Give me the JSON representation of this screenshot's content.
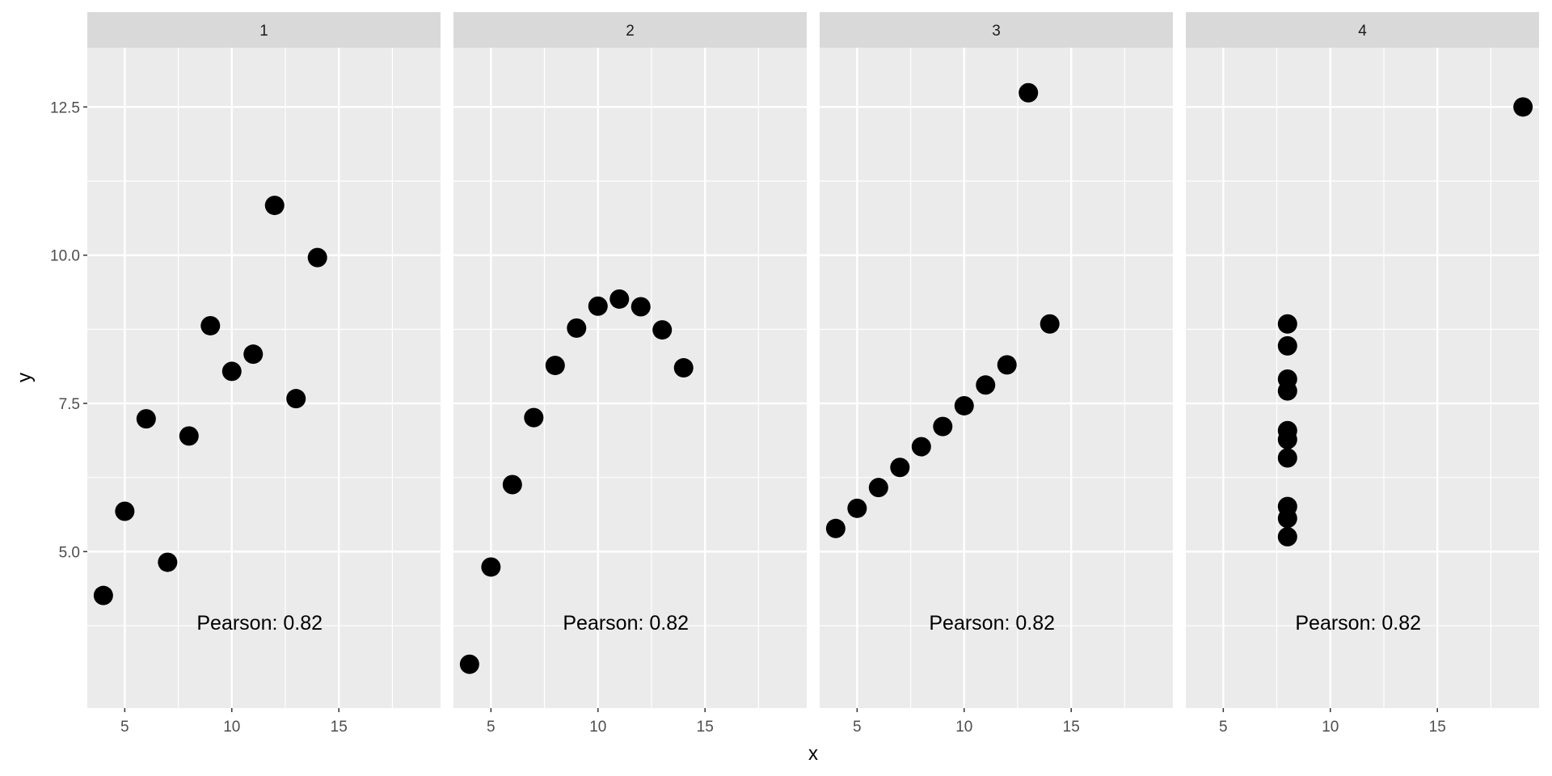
{
  "chart_data": {
    "type": "scatter",
    "xlabel": "x",
    "ylabel": "y",
    "xlim": [
      3.25,
      19.75
    ],
    "ylim": [
      2.36,
      13.5
    ],
    "x_ticks": [
      5,
      10,
      15
    ],
    "x_tick_labels": [
      "5",
      "10",
      "15"
    ],
    "y_ticks": [
      5.0,
      7.5,
      10.0,
      12.5
    ],
    "y_tick_labels": [
      "5.0",
      "7.5",
      "10.0",
      "12.5"
    ],
    "grid": true,
    "facets": [
      {
        "label": "1",
        "annotation": "Pearson:  0.82",
        "points": [
          [
            10,
            8.04
          ],
          [
            8,
            6.95
          ],
          [
            13,
            7.58
          ],
          [
            9,
            8.81
          ],
          [
            11,
            8.33
          ],
          [
            14,
            9.96
          ],
          [
            6,
            7.24
          ],
          [
            4,
            4.26
          ],
          [
            12,
            10.84
          ],
          [
            7,
            4.82
          ],
          [
            5,
            5.68
          ]
        ]
      },
      {
        "label": "2",
        "annotation": "Pearson:  0.82",
        "points": [
          [
            10,
            9.14
          ],
          [
            8,
            8.14
          ],
          [
            13,
            8.74
          ],
          [
            9,
            8.77
          ],
          [
            11,
            9.26
          ],
          [
            14,
            8.1
          ],
          [
            6,
            6.13
          ],
          [
            4,
            3.1
          ],
          [
            12,
            9.13
          ],
          [
            7,
            7.26
          ],
          [
            5,
            4.74
          ]
        ]
      },
      {
        "label": "3",
        "annotation": "Pearson:  0.82",
        "points": [
          [
            10,
            7.46
          ],
          [
            8,
            6.77
          ],
          [
            13,
            12.74
          ],
          [
            9,
            7.11
          ],
          [
            11,
            7.81
          ],
          [
            14,
            8.84
          ],
          [
            6,
            6.08
          ],
          [
            4,
            5.39
          ],
          [
            12,
            8.15
          ],
          [
            7,
            6.42
          ],
          [
            5,
            5.73
          ]
        ]
      },
      {
        "label": "4",
        "annotation": "Pearson:  0.82",
        "points": [
          [
            8,
            6.58
          ],
          [
            8,
            5.76
          ],
          [
            8,
            7.71
          ],
          [
            8,
            8.84
          ],
          [
            8,
            8.47
          ],
          [
            8,
            7.04
          ],
          [
            8,
            5.25
          ],
          [
            19,
            12.5
          ],
          [
            8,
            5.56
          ],
          [
            8,
            7.91
          ],
          [
            8,
            6.89
          ]
        ]
      }
    ]
  }
}
